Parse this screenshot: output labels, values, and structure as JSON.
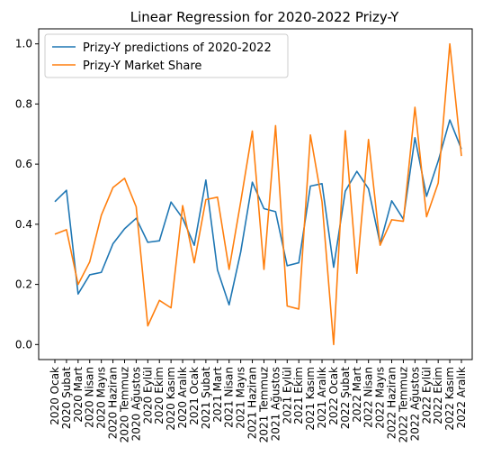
{
  "chart_data": {
    "type": "line",
    "title": "Linear Regression for 2020-2022 Prizy-Y",
    "xlabel": "",
    "ylabel": "",
    "ylim": [
      -0.05,
      1.05
    ],
    "yticks": [
      0.0,
      0.2,
      0.4,
      0.6,
      0.8,
      1.0
    ],
    "ytick_labels": [
      "0.0",
      "0.2",
      "0.4",
      "0.6",
      "0.8",
      "1.0"
    ],
    "legend_position": "top-left",
    "grid": false,
    "categories": [
      "2020 Ocak",
      "2020 Şubat",
      "2020 Mart",
      "2020 Nisan",
      "2020 Mayıs",
      "2020 Haziran",
      "2020 Temmuz",
      "2020 Ağustos",
      "2020 Eylül",
      "2020 Ekim",
      "2020 Kasım",
      "2020 Aralık",
      "2021 Ocak",
      "2021 Şubat",
      "2021 Mart",
      "2021 Nisan",
      "2021 Mayıs",
      "2021 Haziran",
      "2021 Temmuz",
      "2021 Ağustos",
      "2021 Eylül",
      "2021 Ekim",
      "2021 Kasım",
      "2021 Aralık",
      "2022 Ocak",
      "2022 Şubat",
      "2022 Mart",
      "2022 Nisan",
      "2022 Mayıs",
      "2022 Haziran",
      "2022 Temmuz",
      "2022 Ağustos",
      "2022 Eylül",
      "2022 Ekim",
      "2022 Kasım",
      "2022 Aralık"
    ],
    "series": [
      {
        "name": "Prizy-Y predictions of 2020-2022",
        "color": "#1f77b4",
        "values": [
          0.475,
          0.513,
          0.168,
          0.232,
          0.24,
          0.335,
          0.385,
          0.42,
          0.34,
          0.345,
          0.474,
          0.42,
          0.33,
          0.547,
          0.248,
          0.132,
          0.308,
          0.54,
          0.452,
          0.442,
          0.262,
          0.272,
          0.527,
          0.535,
          0.257,
          0.51,
          0.576,
          0.518,
          0.335,
          0.478,
          0.417,
          0.688,
          0.493,
          0.61,
          0.747,
          0.65
        ]
      },
      {
        "name": "Prizy-Y Market Share",
        "color": "#ff7f0e",
        "values": [
          0.367,
          0.382,
          0.2,
          0.275,
          0.43,
          0.522,
          0.553,
          0.458,
          0.062,
          0.147,
          0.122,
          0.462,
          0.272,
          0.482,
          0.49,
          0.25,
          0.475,
          0.71,
          0.25,
          0.728,
          0.128,
          0.118,
          0.697,
          0.475,
          0.0,
          0.711,
          0.237,
          0.682,
          0.33,
          0.415,
          0.41,
          0.789,
          0.425,
          0.537,
          1.0,
          0.627
        ]
      }
    ]
  }
}
